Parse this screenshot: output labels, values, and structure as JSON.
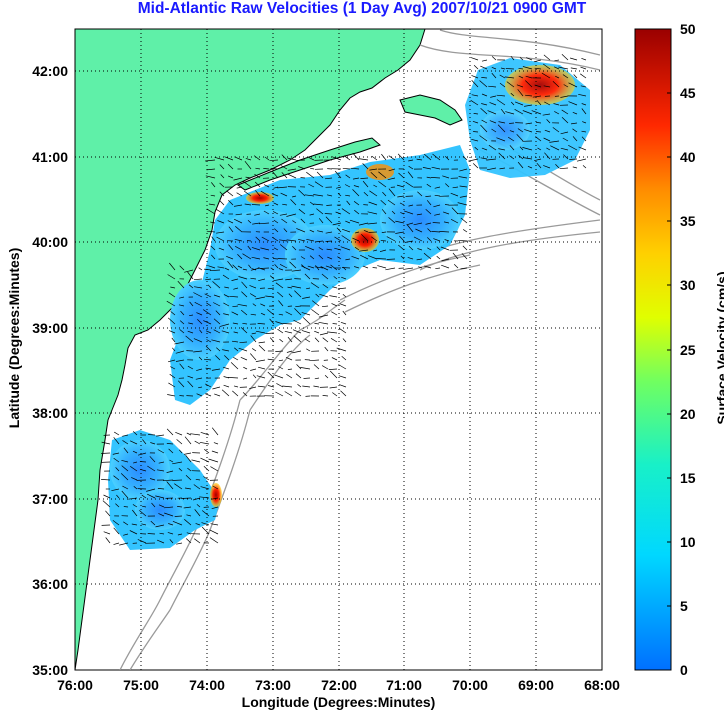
{
  "title": "Mid-Atlantic Raw Velocities (1 Day Avg) 2007/10/21 0900 GMT",
  "xlabel": "Longitude (Degrees:Minutes)",
  "ylabel": "Latitude (Degrees:Minutes)",
  "colorbar_label": "Surface Velocity (cm/s)",
  "x_ticks": [
    "76:00",
    "75:00",
    "74:00",
    "73:00",
    "72:00",
    "71:00",
    "70:00",
    "69:00",
    "68:00"
  ],
  "y_ticks": [
    "35:00",
    "36:00",
    "37:00",
    "38:00",
    "39:00",
    "40:00",
    "41:00",
    "42:00"
  ],
  "colorbar_ticks": [
    "0",
    "5",
    "10",
    "15",
    "20",
    "25",
    "30",
    "35",
    "40",
    "45",
    "50"
  ],
  "colors": {
    "land": "#5ff0a8",
    "coast": "#000000",
    "bathymetry": "#9a9a9a",
    "title": "#1a1aff"
  },
  "map": {
    "lon_range": [
      -76,
      -68
    ],
    "lat_range": [
      35,
      42.5
    ],
    "grid": "dotted",
    "vectors_shown": true,
    "colormap": "jet",
    "velocity_range_cm_s": [
      0,
      50
    ]
  }
}
